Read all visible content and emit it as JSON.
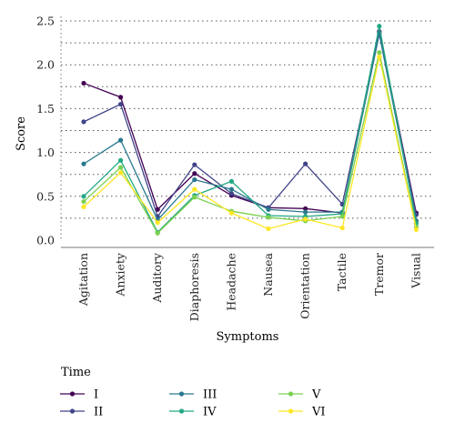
{
  "chart_data": {
    "type": "line",
    "xlabel": "Symptoms",
    "ylabel": "Score",
    "ylim": [
      0,
      2.5
    ],
    "yticks": [
      "0.0",
      "0.5",
      "1.0",
      "1.5",
      "2.0",
      "2.5"
    ],
    "grid": "horizontal dotted",
    "categories": [
      "Agitation",
      "Anxiety",
      "Auditory",
      "Diaphoresis",
      "Headache",
      "Nausea",
      "Orientation",
      "Tactile",
      "Tremor",
      "Visual"
    ],
    "legend": {
      "title": "Time",
      "position": "bottom"
    },
    "series": [
      {
        "name": "I",
        "color": "#440154",
        "values": [
          1.79,
          1.63,
          0.35,
          0.76,
          0.51,
          0.37,
          0.36,
          0.31,
          2.38,
          0.31
        ]
      },
      {
        "name": "II",
        "color": "#414487",
        "values": [
          1.35,
          1.55,
          0.27,
          0.86,
          0.53,
          0.37,
          0.87,
          0.41,
          2.37,
          0.29
        ]
      },
      {
        "name": "III",
        "color": "#2a788e",
        "values": [
          0.87,
          1.14,
          0.23,
          0.69,
          0.58,
          0.35,
          0.32,
          0.32,
          2.35,
          0.22
        ]
      },
      {
        "name": "IV",
        "color": "#22a884",
        "values": [
          0.5,
          0.91,
          0.09,
          0.51,
          0.67,
          0.28,
          0.27,
          0.3,
          2.44,
          0.19
        ]
      },
      {
        "name": "V",
        "color": "#7ad151",
        "values": [
          0.44,
          0.83,
          0.08,
          0.49,
          0.33,
          0.26,
          0.22,
          0.27,
          2.14,
          0.15
        ]
      },
      {
        "name": "VI",
        "color": "#fde725",
        "values": [
          0.38,
          0.77,
          0.2,
          0.58,
          0.31,
          0.13,
          0.24,
          0.14,
          2.09,
          0.12
        ]
      }
    ]
  }
}
